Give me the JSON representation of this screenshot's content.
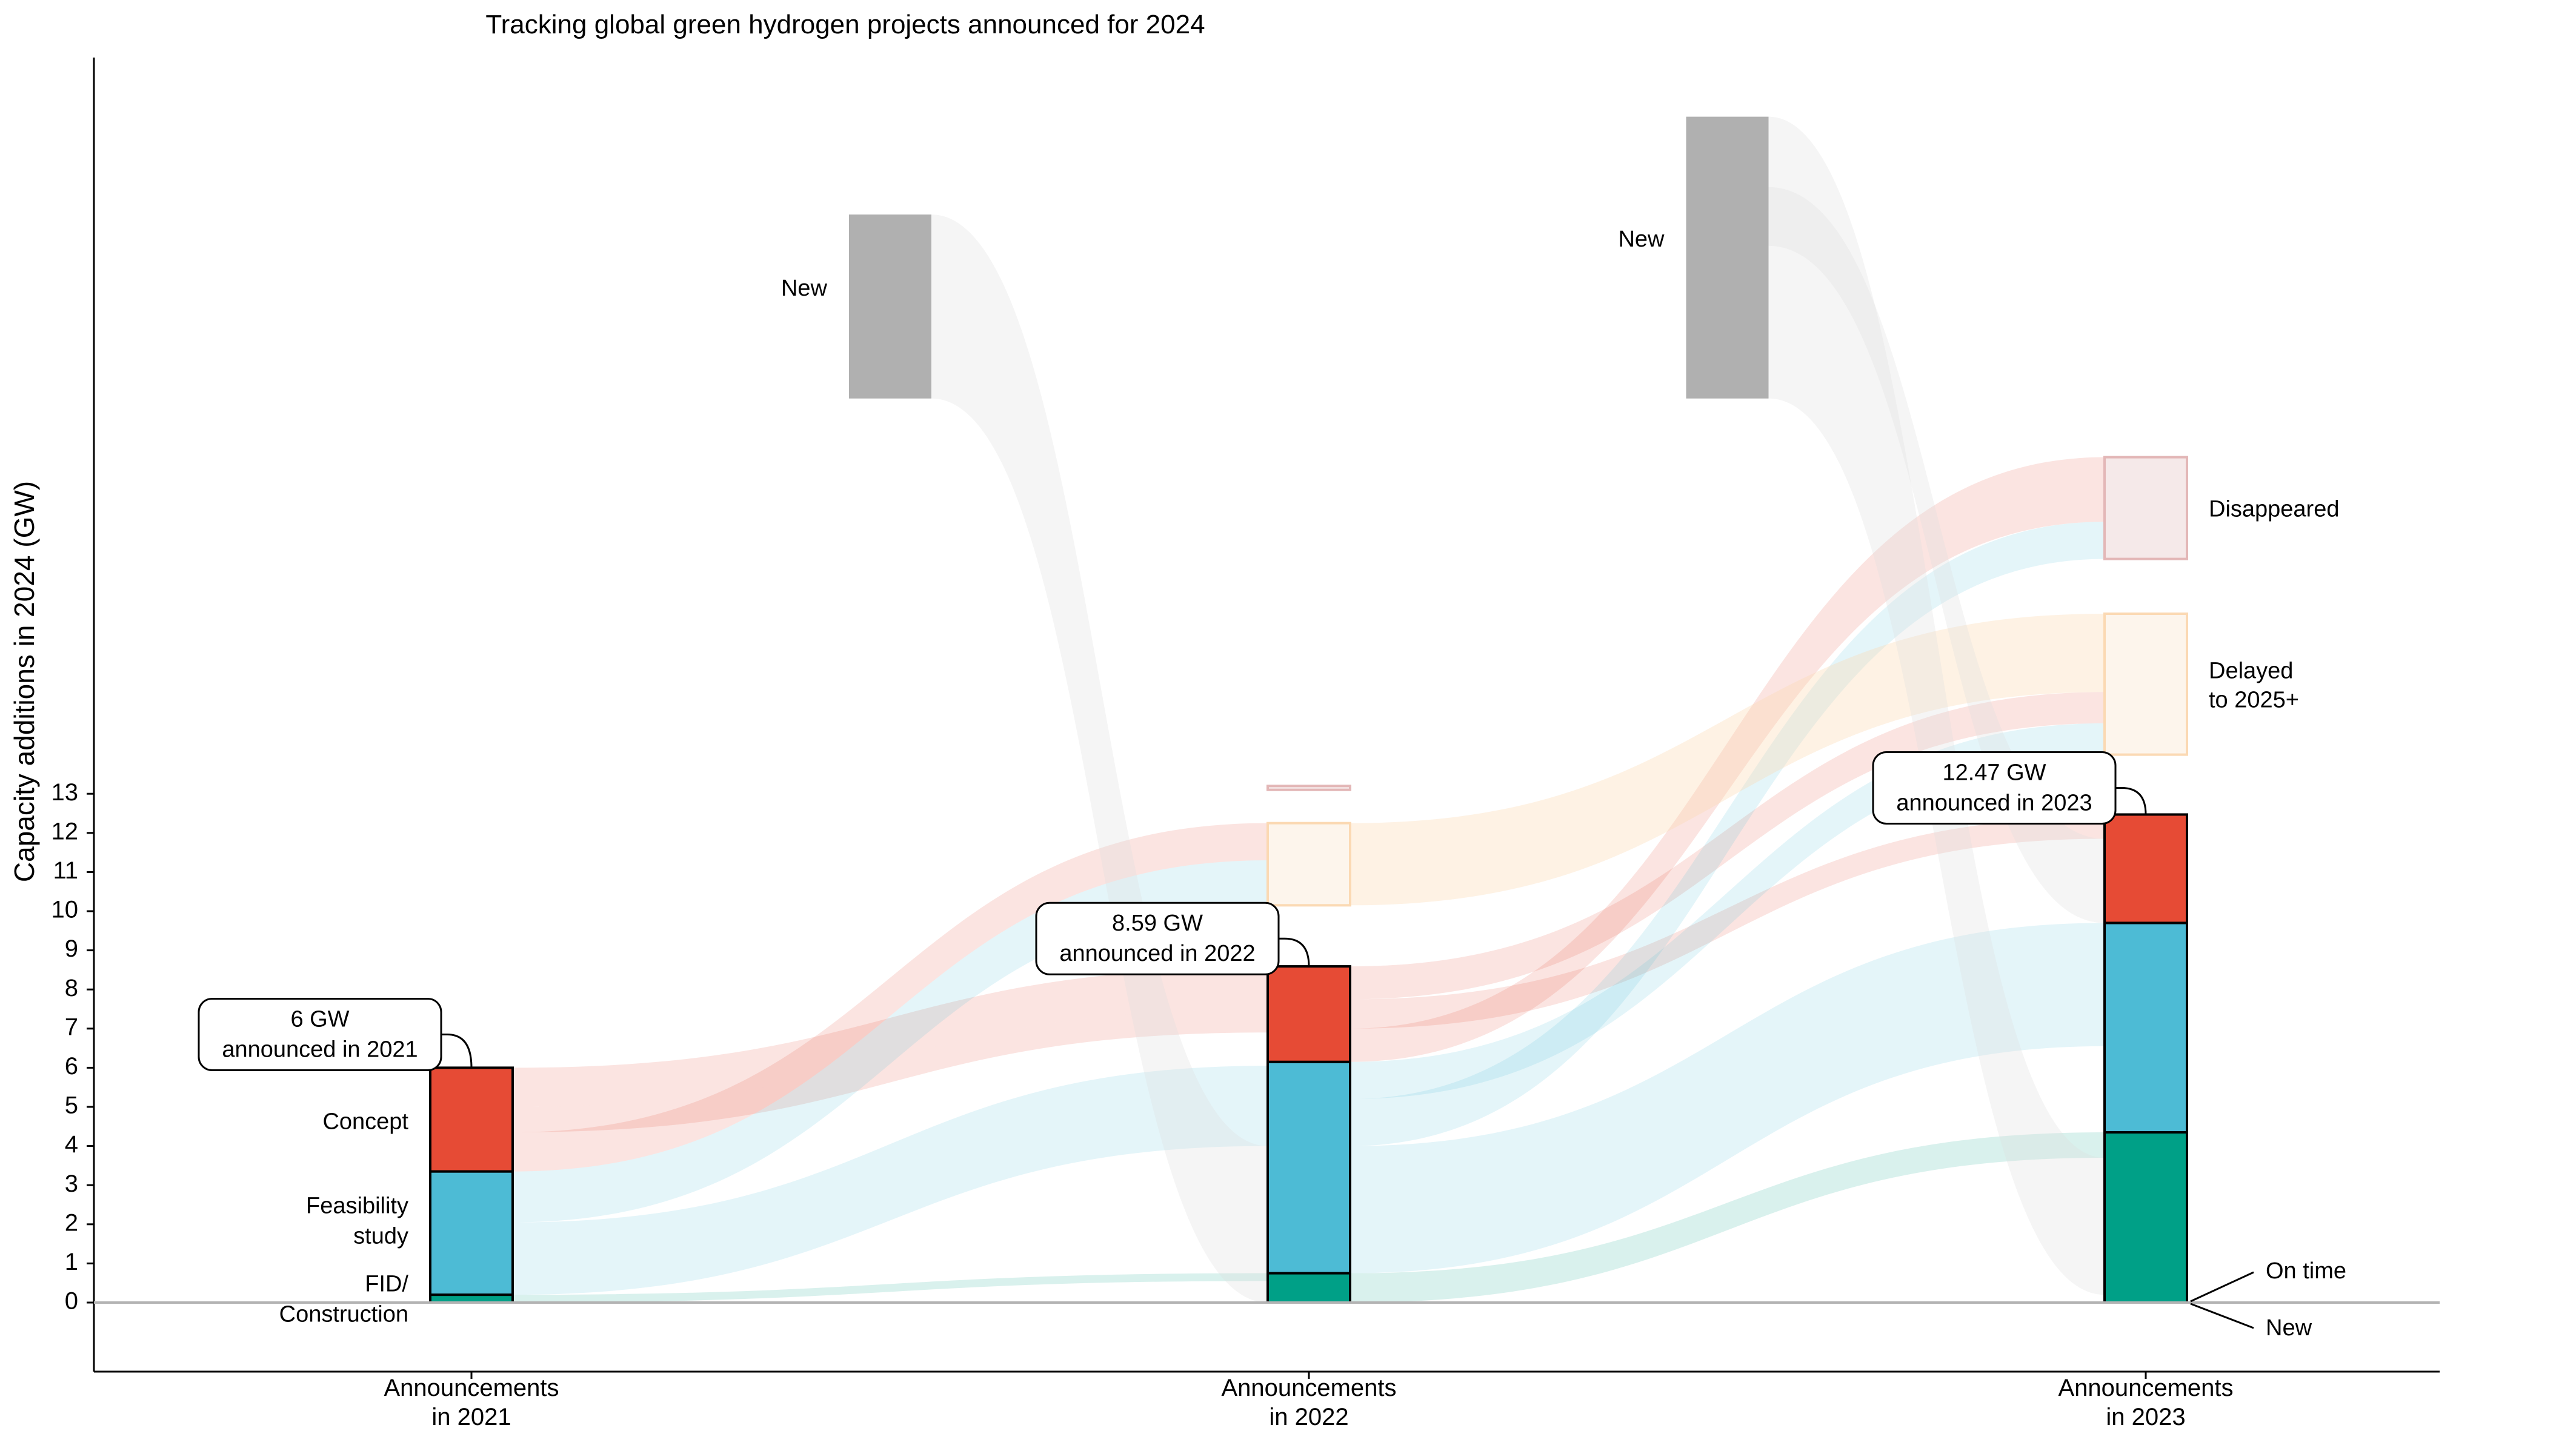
{
  "chart_data": {
    "type": "sankey-stacked-bar",
    "title": "Tracking global green hydrogen projects announced for 2024",
    "ylabel": "Capacity additions in 2024 (GW)",
    "ylim": [
      -1.5,
      32
    ],
    "yticks": [
      0,
      1,
      2,
      3,
      4,
      5,
      6,
      7,
      8,
      9,
      10,
      11,
      12,
      13
    ],
    "grid": false,
    "colors": {
      "concept": "#e64b35",
      "feasibility": "#4dbbd5",
      "fid": "#00a087",
      "new": "#b0b0b0",
      "delayed_fill": "#fdf5ec",
      "delayed_edge": "#fbd9b3",
      "disappeared_fill": "#f5e9e9",
      "disappeared_edge": "#e3b7b7",
      "flow_new": "#dddddd",
      "flow_delayed": "#fbd9b3"
    },
    "categories": [
      {
        "label": "Announcements\nin 2021",
        "total": 6.0,
        "fid": 0.2,
        "feasibility": 3.15,
        "concept": 2.65
      },
      {
        "label": "Announcements\nin 2022",
        "total": 8.59,
        "fid": 0.75,
        "feasibility": 5.4,
        "concept": 2.44
      },
      {
        "label": "Announcements\nin 2023",
        "total": 12.47,
        "fid": 4.35,
        "feasibility": 5.35,
        "concept": 2.77
      }
    ],
    "new_blocks": [
      {
        "label": "New",
        "between": [
          0,
          1
        ],
        "bottom": 23.1,
        "top": 27.8
      },
      {
        "label": "New",
        "between": [
          1,
          2
        ],
        "bottom": 23.1,
        "top": 30.3
      }
    ],
    "outcome_blocks": [
      {
        "category": 1,
        "kind": "delayed",
        "bottom": 10.15,
        "top": 12.25
      },
      {
        "category": 1,
        "kind": "disappeared",
        "bottom": 13.1,
        "top": 13.2
      },
      {
        "category": 2,
        "kind": "delayed",
        "label": "Delayed\nto 2025+",
        "bottom": 14.0,
        "top": 17.6
      },
      {
        "category": 2,
        "kind": "disappeared",
        "label": "Disappeared",
        "bottom": 19.0,
        "top": 21.6
      }
    ],
    "stage_labels": [
      {
        "text": "Concept",
        "y": 4.65
      },
      {
        "text": "Feasibility\nstudy",
        "y": 2.1
      },
      {
        "text": "FID/\nConstruction",
        "y": 0.1
      }
    ],
    "annotations": [
      {
        "category": 0,
        "text": "6 GW\nannounced in 2021",
        "box_y": 6.85
      },
      {
        "category": 1,
        "text": "8.59 GW\nannounced in 2022",
        "box_y": 9.3
      },
      {
        "category": 2,
        "text": "12.47 GW\nannounced in 2023",
        "box_y": 13.15
      }
    ],
    "endpoint_labels": [
      "On time",
      "New"
    ],
    "flows": [
      {
        "from": 0,
        "to": 1,
        "color": "concept",
        "s0": 3.35,
        "s1": 4.35,
        "t0": 11.3,
        "t1": 12.25
      },
      {
        "from": 0,
        "to": 1,
        "color": "concept",
        "s0": 4.35,
        "s1": 5.0,
        "t0": 6.9,
        "t1": 7.5
      },
      {
        "from": 0,
        "to": 1,
        "color": "concept",
        "s0": 5.0,
        "s1": 6.0,
        "t0": 7.5,
        "t1": 8.55
      },
      {
        "from": 0,
        "to": 1,
        "color": "feasibility",
        "s0": 0.2,
        "s1": 2.05,
        "t0": 4.0,
        "t1": 6.05
      },
      {
        "from": 0,
        "to": 1,
        "color": "feasibility",
        "s0": 2.05,
        "s1": 3.35,
        "t0": 10.15,
        "t1": 11.3
      },
      {
        "from": 0,
        "to": 1,
        "color": "fid",
        "s0": 0.0,
        "s1": 0.2,
        "t0": 0.55,
        "t1": 0.75
      },
      {
        "from": 1,
        "to": 2,
        "color": "concept",
        "s0": 6.15,
        "s1": 7.0,
        "t0": 19.95,
        "t1": 21.6
      },
      {
        "from": 1,
        "to": 2,
        "color": "concept",
        "s0": 7.0,
        "s1": 7.75,
        "t0": 11.85,
        "t1": 12.4
      },
      {
        "from": 1,
        "to": 2,
        "color": "concept",
        "s0": 7.75,
        "s1": 8.59,
        "t0": 14.8,
        "t1": 15.6
      },
      {
        "from": 1,
        "to": 2,
        "color": "feasibility",
        "s0": 0.75,
        "s1": 4.0,
        "t0": 6.55,
        "t1": 9.7
      },
      {
        "from": 1,
        "to": 2,
        "color": "feasibility",
        "s0": 4.0,
        "s1": 5.2,
        "t0": 19.0,
        "t1": 19.95
      },
      {
        "from": 1,
        "to": 2,
        "color": "feasibility",
        "s0": 5.2,
        "s1": 6.15,
        "t0": 14.0,
        "t1": 14.8
      },
      {
        "from": 1,
        "to": 2,
        "color": "fid",
        "s0": 0.0,
        "s1": 0.75,
        "t0": 3.7,
        "t1": 4.35
      },
      {
        "from": 1,
        "to": 2,
        "color": "flow_delayed",
        "s0": 10.15,
        "s1": 12.25,
        "t0": 15.6,
        "t1": 17.6
      },
      {
        "from": 0.5,
        "to": 1,
        "color": "flow_new",
        "s0": 23.1,
        "s1": 27.8,
        "t0": 0.0,
        "t1": 4.0
      },
      {
        "from": 1.5,
        "to": 2,
        "color": "flow_new",
        "s0": 23.1,
        "s1": 30.3,
        "t0": 0.2,
        "t1": 3.7
      },
      {
        "from": 1.5,
        "to": 2,
        "color": "flow_new",
        "s0": 27.0,
        "s1": 28.5,
        "t0": 9.7,
        "t1": 11.85
      }
    ]
  }
}
